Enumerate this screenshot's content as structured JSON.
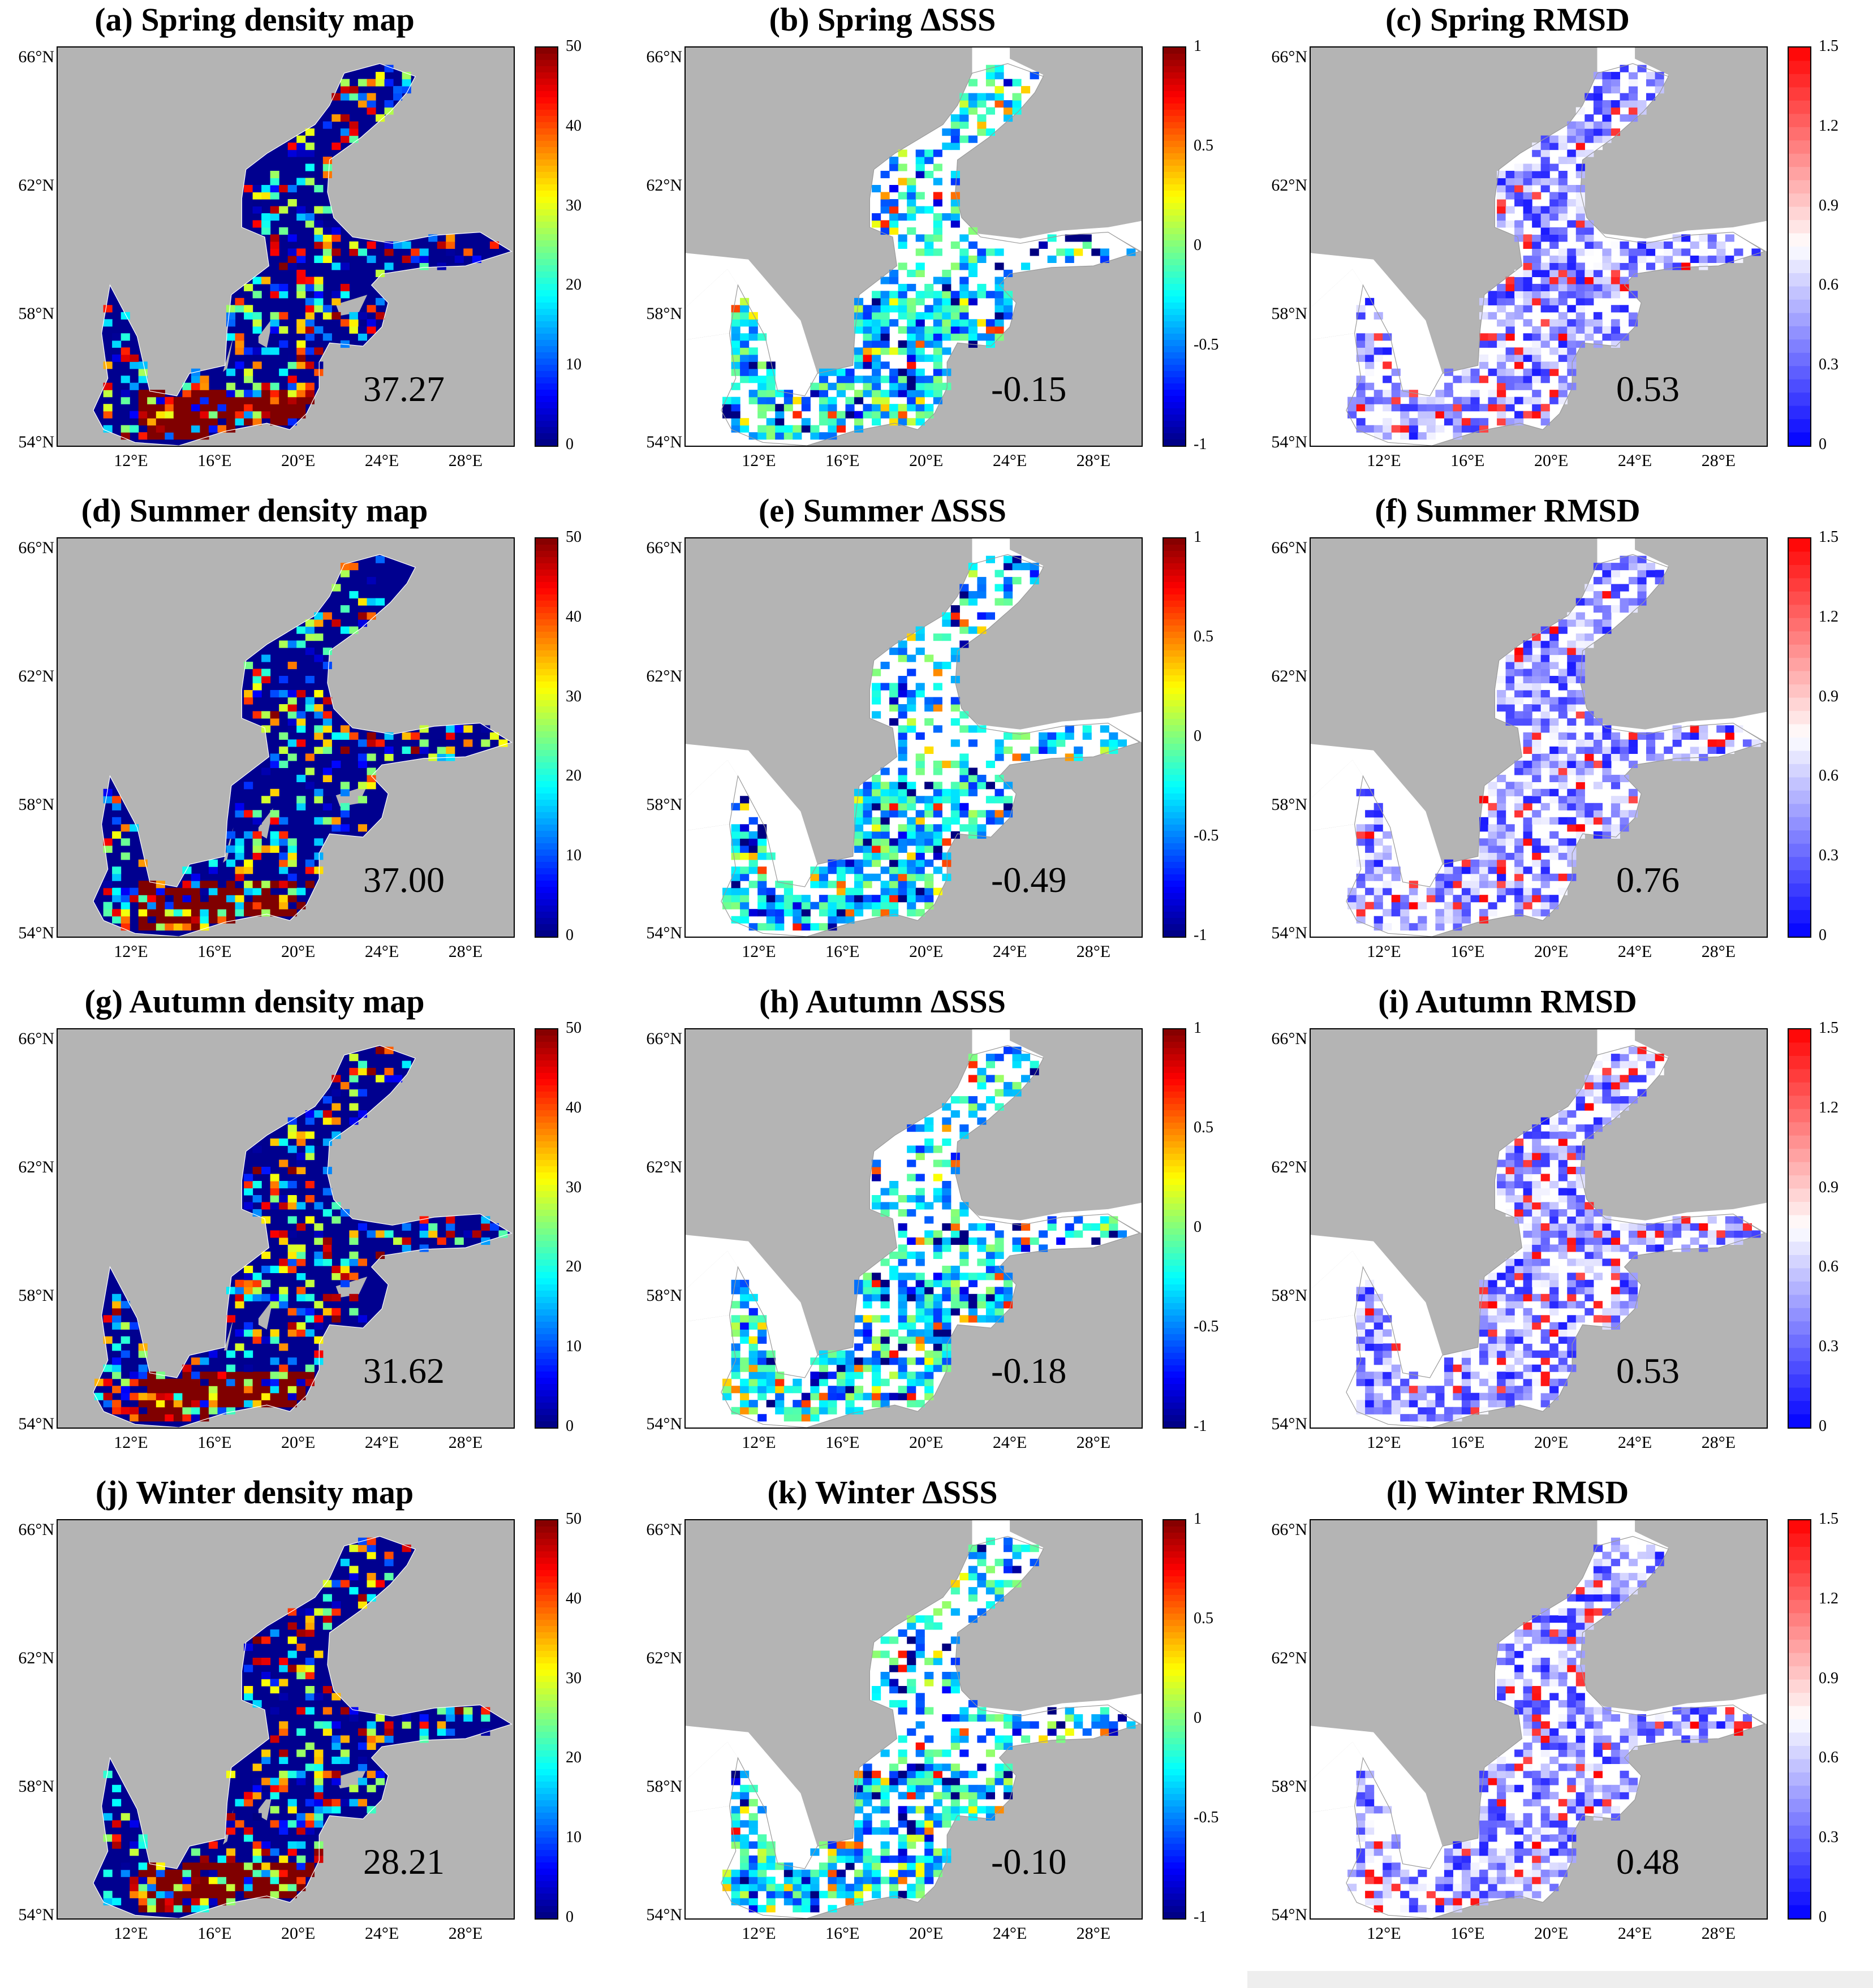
{
  "figure": {
    "lat_labels": [
      "66°N",
      "62°N",
      "58°N",
      "54°N"
    ],
    "lon_labels": [
      "12°E",
      "16°E",
      "20°E",
      "24°E",
      "28°E"
    ],
    "colors": {
      "land": "#b4b4b4",
      "sea_background": "#ffffff",
      "no_data": "#ffffff"
    },
    "colorbars": {
      "density": {
        "colormap": "jet",
        "ticks": [
          "50",
          "40",
          "30",
          "20",
          "10",
          "0"
        ],
        "range": [
          0,
          50
        ]
      },
      "delta_sss": {
        "colormap": "jet",
        "ticks": [
          "1",
          "0.5",
          "0",
          "-0.5",
          "-1"
        ],
        "range": [
          -1,
          1
        ]
      },
      "rmsd": {
        "colormap": "blue-white-red",
        "ticks": [
          "1.5",
          "1.2",
          "0.9",
          "0.6",
          "0.3",
          "0"
        ],
        "range": [
          0,
          1.5
        ]
      }
    }
  },
  "panels": [
    {
      "title": "(a) Spring density map",
      "kind": "density",
      "value": "37.27"
    },
    {
      "title": "(b) Spring ΔSSS",
      "kind": "delta_sss",
      "value": "-0.15"
    },
    {
      "title": "(c) Spring RMSD",
      "kind": "rmsd",
      "value": "0.53"
    },
    {
      "title": "(d) Summer density map",
      "kind": "density",
      "value": "37.00"
    },
    {
      "title": "(e) Summer ΔSSS",
      "kind": "delta_sss",
      "value": "-0.49"
    },
    {
      "title": "(f) Summer RMSD",
      "kind": "rmsd",
      "value": "0.76"
    },
    {
      "title": "(g) Autumn density map",
      "kind": "density",
      "value": "31.62"
    },
    {
      "title": "(h) Autumn ΔSSS",
      "kind": "delta_sss",
      "value": "-0.18"
    },
    {
      "title": "(i) Autumn RMSD",
      "kind": "rmsd",
      "value": "0.53"
    },
    {
      "title": "(j) Winter density map",
      "kind": "density",
      "value": "28.21"
    },
    {
      "title": "(k) Winter ΔSSS",
      "kind": "delta_sss",
      "value": "-0.10"
    },
    {
      "title": "(l) Winter RMSD",
      "kind": "rmsd",
      "value": "0.48"
    }
  ]
}
